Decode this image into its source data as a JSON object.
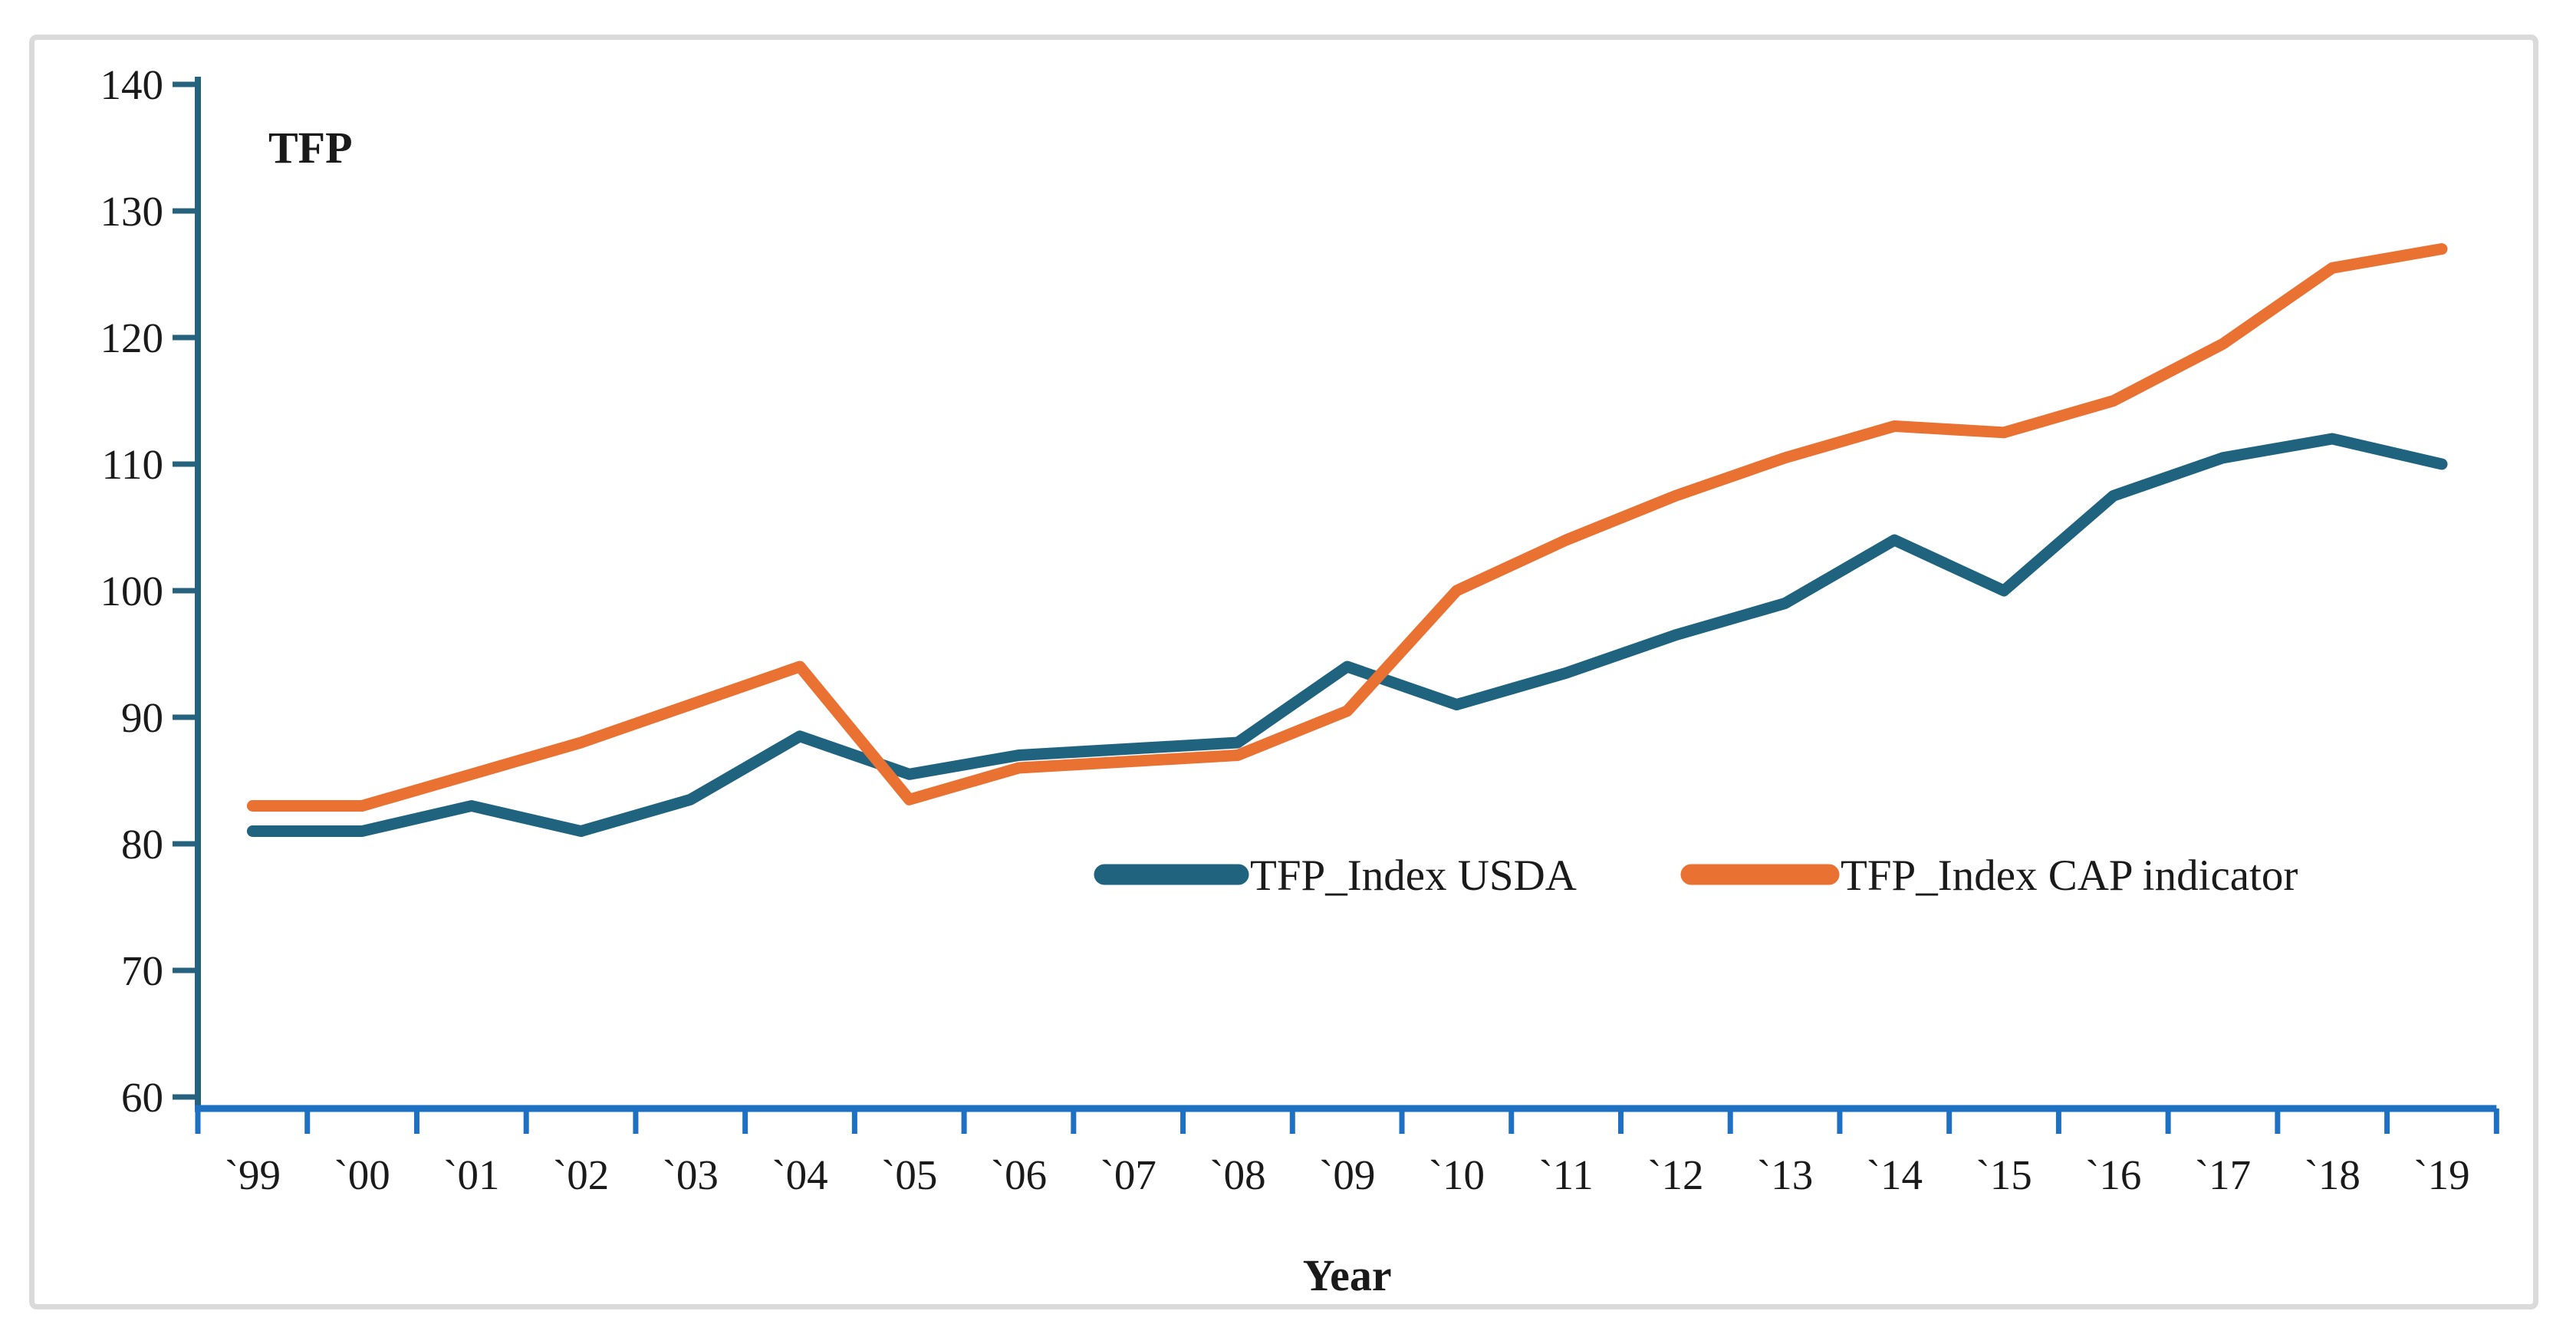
{
  "figure": {
    "y_axis_title": "TFP",
    "x_axis_title": "Year",
    "border_color": "#dadada",
    "background": "#ffffff"
  },
  "chart_data": {
    "type": "line",
    "title": "",
    "ylabel": "TFP",
    "xlabel": "Year",
    "ylim": [
      60,
      140
    ],
    "yticks": [
      60,
      70,
      80,
      90,
      100,
      110,
      120,
      130,
      140
    ],
    "grid": false,
    "legend_position": "inside plot, lower middle-right",
    "axis_colors": {
      "y_axis": "#24627e",
      "x_axis": "#1d70c2"
    },
    "categories": [
      "`99",
      "`00",
      "`01",
      "`02",
      "`03",
      "`04",
      "`05",
      "`06",
      "`07",
      "`08",
      "`09",
      "`10",
      "`11",
      "`12",
      "`13",
      "`14",
      "`15",
      "`16",
      "`17",
      "`18",
      "`19"
    ],
    "series": [
      {
        "name": "TFP_Index USDA",
        "color": "#20637e",
        "values": [
          81,
          81,
          83,
          81,
          83.5,
          88.5,
          85.5,
          87,
          87.5,
          88,
          94,
          91,
          93.5,
          96.5,
          99,
          104,
          100,
          107.5,
          110.5,
          112,
          110
        ]
      },
      {
        "name": "TFP_Index CAP indicator",
        "color": "#e97132",
        "values": [
          83,
          83,
          85.5,
          88,
          91,
          94,
          83.5,
          86,
          86.5,
          87,
          90.5,
          100,
          104,
          107.5,
          110.5,
          113,
          112.5,
          115,
          119.5,
          125.5,
          127
        ]
      }
    ]
  }
}
